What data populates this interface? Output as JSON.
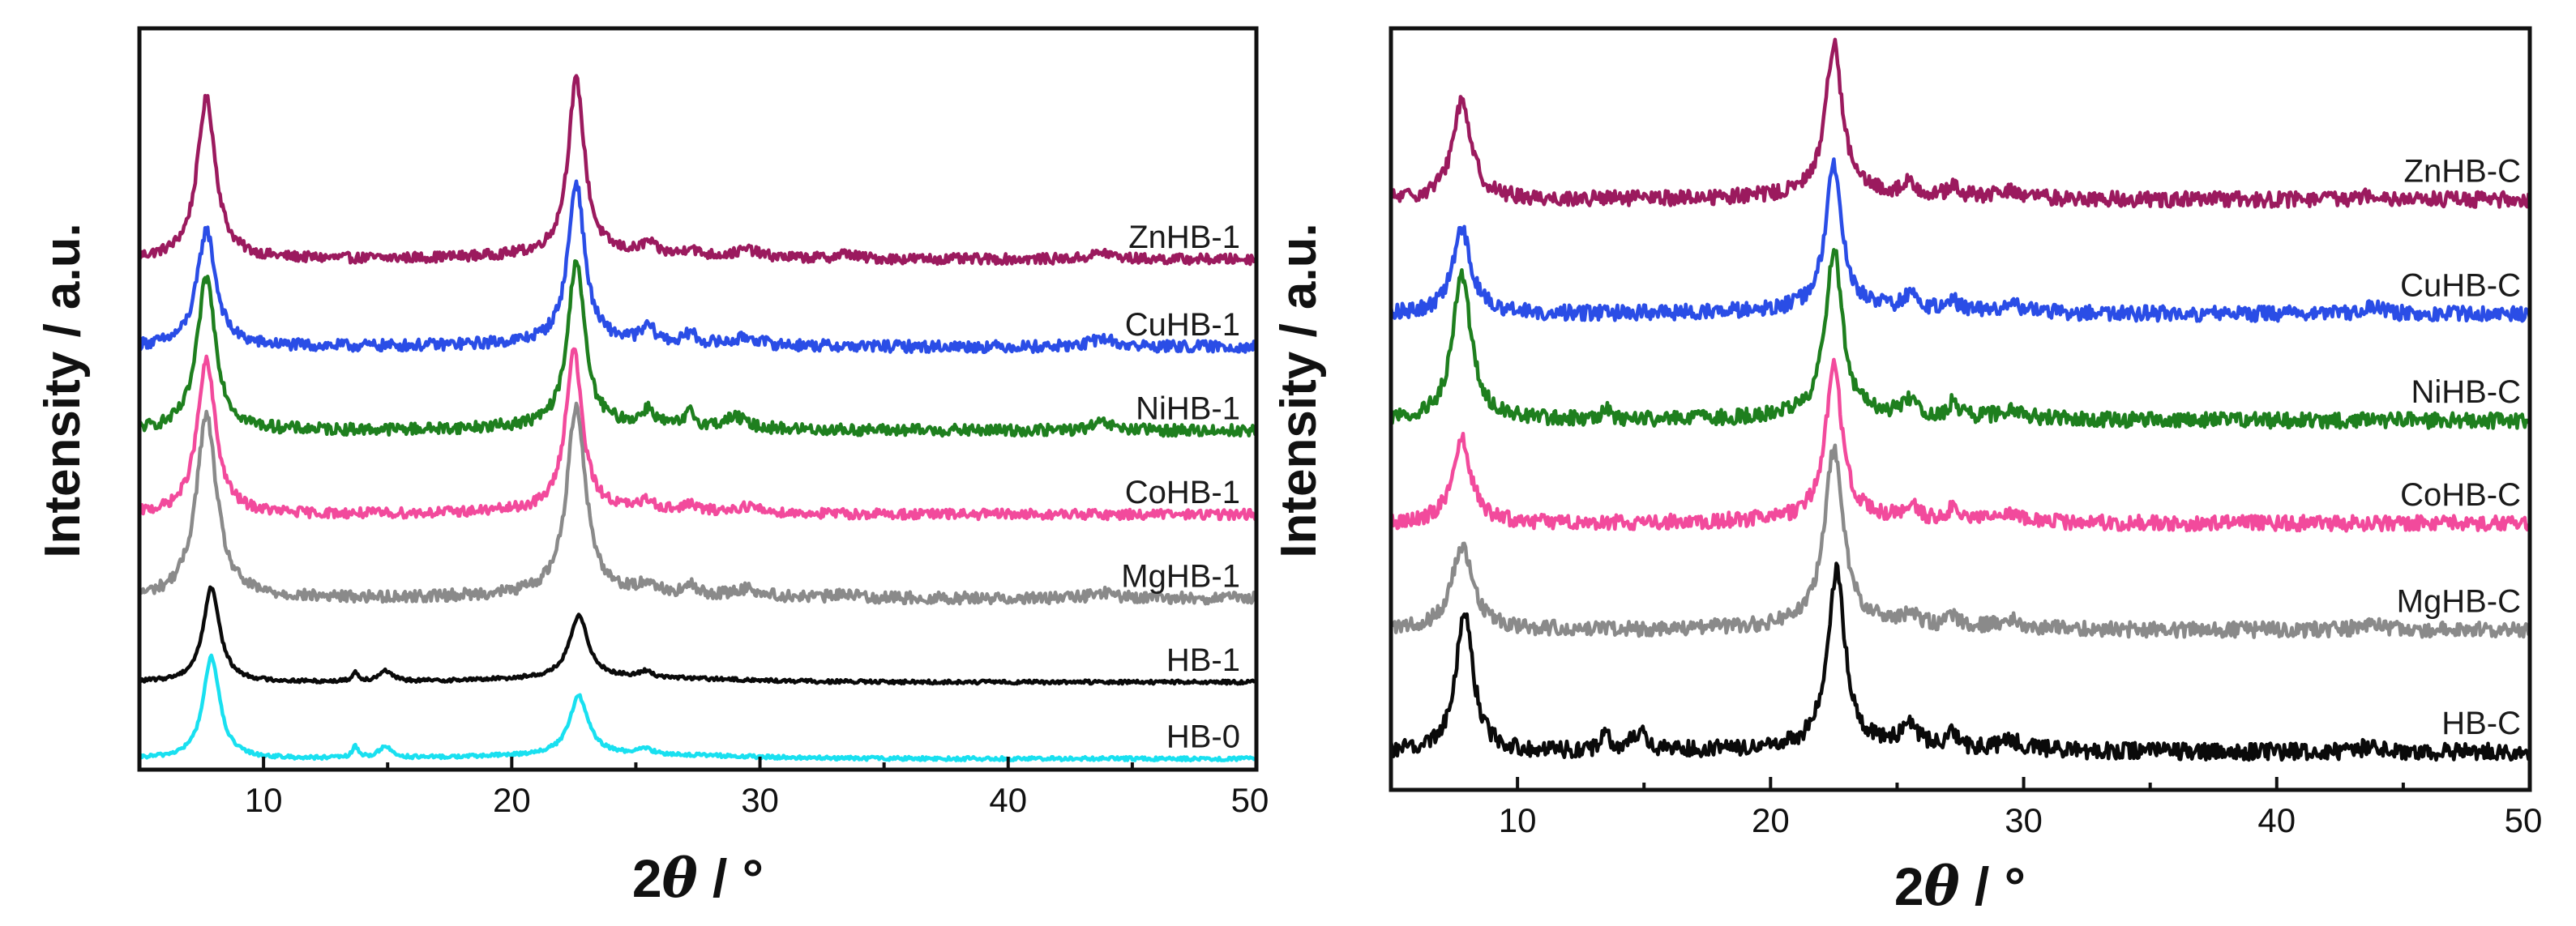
{
  "chart_data": [
    {
      "type": "line",
      "panel": "left",
      "xlabel_prefix": "2",
      "xlabel_symbol": "θ",
      "xlabel_suffix": " / °",
      "ylabel": "Intensity / a.u.",
      "xlim": [
        5,
        50
      ],
      "xticks": [
        10,
        20,
        30,
        40,
        50
      ],
      "ylim": [
        0,
        100
      ],
      "grid": false,
      "series": [
        {
          "name": "ZnHB-1",
          "color": "#9b1a5e",
          "baseline": 70,
          "peaks": [
            [
              7.7,
              22,
              0.45
            ],
            [
              22.6,
              24,
              0.4
            ],
            [
              25.5,
              1.5,
              0.3
            ],
            [
              27.2,
              1.2,
              0.2
            ],
            [
              29.5,
              1.0,
              0.5
            ],
            [
              33.5,
              0.7,
              0.4
            ],
            [
              43.8,
              0.9,
              0.5
            ]
          ],
          "noise": 0.7
        },
        {
          "name": "CuHB-1",
          "color": "#2a4de6",
          "baseline": 58,
          "peaks": [
            [
              7.7,
              16,
              0.45
            ],
            [
              22.6,
              22,
              0.4
            ],
            [
              25.5,
              2.0,
              0.3
            ],
            [
              27.2,
              1.5,
              0.2
            ],
            [
              29.5,
              1.0,
              0.5
            ],
            [
              43.8,
              1.2,
              0.5
            ]
          ],
          "noise": 0.8
        },
        {
          "name": "NiHB-1",
          "color": "#1e7f1e",
          "baseline": 46.5,
          "peaks": [
            [
              7.7,
              21,
              0.45
            ],
            [
              22.6,
              23,
              0.4
            ],
            [
              25.5,
              2.2,
              0.3
            ],
            [
              27.2,
              2.0,
              0.2
            ],
            [
              29.0,
              1.5,
              0.5
            ],
            [
              43.8,
              1.0,
              0.5
            ]
          ],
          "noise": 0.8
        },
        {
          "name": "CoHB-1",
          "color": "#f24a9c",
          "baseline": 35,
          "peaks": [
            [
              7.7,
              21,
              0.45
            ],
            [
              22.5,
              22,
              0.4
            ],
            [
              25.5,
              1.2,
              0.3
            ],
            [
              27.2,
              1.0,
              0.2
            ],
            [
              29.5,
              0.8,
              0.5
            ]
          ],
          "noise": 0.7
        },
        {
          "name": "MgHB-1",
          "color": "#8a8a8a",
          "baseline": 23.5,
          "peaks": [
            [
              7.7,
              25,
              0.5
            ],
            [
              22.6,
              26,
              0.45
            ],
            [
              25.5,
              1.5,
              0.3
            ],
            [
              27.2,
              1.2,
              0.2
            ],
            [
              29.5,
              1.0,
              0.5
            ],
            [
              33.5,
              0.6,
              0.4
            ],
            [
              43.8,
              0.8,
              0.5
            ]
          ],
          "noise": 0.8
        },
        {
          "name": "HB-1",
          "color": "#0a0a0a",
          "baseline": 12,
          "peaks": [
            [
              7.9,
              13,
              0.4
            ],
            [
              13.7,
              1.2,
              0.15
            ],
            [
              14.9,
              1.5,
              0.3
            ],
            [
              22.7,
              8.5,
              0.45
            ],
            [
              25.4,
              0.8,
              0.3
            ]
          ],
          "noise": 0.25
        },
        {
          "name": "HB-0",
          "color": "#19e0f0",
          "baseline": 1.5,
          "peaks": [
            [
              7.9,
              14,
              0.4
            ],
            [
              13.7,
              1.5,
              0.15
            ],
            [
              14.9,
              1.6,
              0.3
            ],
            [
              22.7,
              8,
              0.45
            ],
            [
              25.4,
              0.7,
              0.3
            ]
          ],
          "noise": 0.25
        }
      ]
    },
    {
      "type": "line",
      "panel": "right",
      "xlabel_prefix": "2",
      "xlabel_symbol": "θ",
      "xlabel_suffix": " / °",
      "ylabel": "Intensity / a.u.",
      "xlim": [
        5,
        50
      ],
      "xticks": [
        10,
        20,
        30,
        40,
        50
      ],
      "ylim": [
        0,
        100
      ],
      "grid": false,
      "series": [
        {
          "name": "ZnHB-C",
          "color": "#9b1a5e",
          "baseline": 77.5,
          "peaks": [
            [
              7.8,
              13,
              0.45
            ],
            [
              22.5,
              20,
              0.4
            ],
            [
              25.5,
              1.5,
              0.3
            ],
            [
              27.2,
              1.2,
              0.2
            ],
            [
              29.5,
              0.8,
              0.5
            ],
            [
              43.8,
              0.8,
              0.5
            ]
          ],
          "noise": 1.0
        },
        {
          "name": "CuHB-C",
          "color": "#2a4de6",
          "baseline": 62.5,
          "peaks": [
            [
              7.8,
              11,
              0.45
            ],
            [
              22.5,
              19,
              0.4
            ],
            [
              25.5,
              1.8,
              0.3
            ],
            [
              27.2,
              1.5,
              0.2
            ],
            [
              29.5,
              1.0,
              0.5
            ],
            [
              43.8,
              0.8,
              0.5
            ]
          ],
          "noise": 1.0
        },
        {
          "name": "NiHB-C",
          "color": "#1e7f1e",
          "baseline": 48.5,
          "peaks": [
            [
              7.8,
              19,
              0.45
            ],
            [
              22.5,
              22,
              0.4
            ],
            [
              13.5,
              1.5,
              0.2
            ],
            [
              25.5,
              2.0,
              0.3
            ],
            [
              27.2,
              1.8,
              0.2
            ],
            [
              29.5,
              1.2,
              0.5
            ]
          ],
          "noise": 1.0
        },
        {
          "name": "CoHB-C",
          "color": "#f24a9c",
          "baseline": 35,
          "peaks": [
            [
              7.8,
              11,
              0.45
            ],
            [
              22.5,
              20,
              0.4
            ],
            [
              25.5,
              1.8,
              0.3
            ],
            [
              27.2,
              1.5,
              0.2
            ],
            [
              29.5,
              0.8,
              0.5
            ]
          ],
          "noise": 1.0
        },
        {
          "name": "MgHB-C",
          "color": "#8a8a8a",
          "baseline": 21,
          "peaks": [
            [
              7.8,
              11,
              0.5
            ],
            [
              22.5,
              23,
              0.45
            ],
            [
              25.5,
              1.5,
              0.3
            ],
            [
              27.2,
              1.2,
              0.2
            ],
            [
              29.5,
              1.0,
              0.5
            ],
            [
              43.8,
              0.8,
              0.5
            ]
          ],
          "noise": 1.0
        },
        {
          "name": "HB-C",
          "color": "#0a0a0a",
          "baseline": 5,
          "peaks": [
            [
              7.9,
              18,
              0.42
            ],
            [
              13.5,
              2.0,
              0.25
            ],
            [
              14.8,
              2.4,
              0.35
            ],
            [
              22.6,
              23,
              0.42
            ],
            [
              25.5,
              3.0,
              0.35
            ],
            [
              27.2,
              2.2,
              0.2
            ],
            [
              29.5,
              1.2,
              0.5
            ],
            [
              43.8,
              0.8,
              0.5
            ]
          ],
          "noise": 1.1
        }
      ]
    }
  ]
}
